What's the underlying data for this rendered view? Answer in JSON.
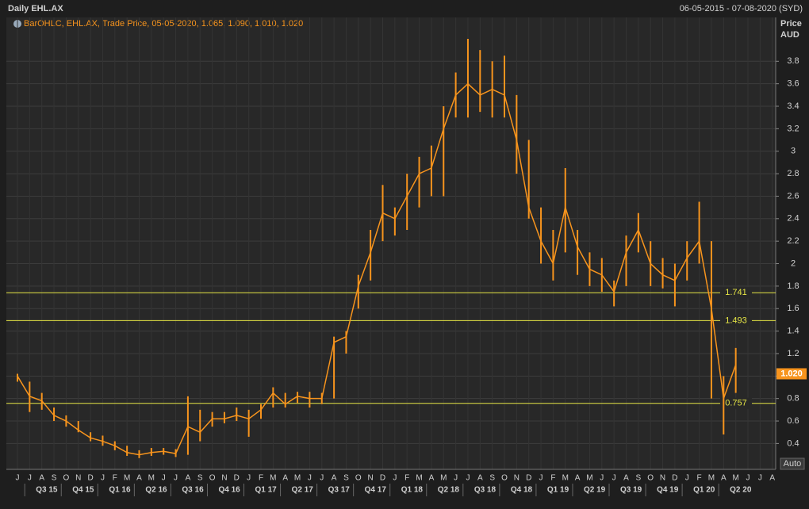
{
  "chart_data": {
    "type": "ohlc",
    "title": "Daily EHL.AX",
    "date_range": "06-05-2015 - 07-08-2020 (SYD)",
    "legend": "BarOHLC, EHL.AX, Trade Price, 05-05-2020, 1.065, 1.090, 1.010, 1.020",
    "y_axis_title": [
      "Price",
      "AUD"
    ],
    "color": "#f7941d",
    "categories": [
      "J",
      "J",
      "A",
      "S",
      "O",
      "N",
      "D",
      "J",
      "F",
      "M",
      "A",
      "M",
      "J",
      "J",
      "A",
      "S",
      "O",
      "N",
      "D",
      "J",
      "F",
      "M",
      "A",
      "M",
      "J",
      "J",
      "A",
      "S",
      "O",
      "N",
      "D",
      "J",
      "F",
      "M",
      "A",
      "M",
      "J",
      "J",
      "A",
      "S",
      "O",
      "N",
      "D",
      "J",
      "F",
      "M",
      "A",
      "M",
      "J",
      "J",
      "A",
      "S",
      "O",
      "N",
      "D",
      "J",
      "F",
      "M",
      "A",
      "M",
      "J",
      "J",
      "A"
    ],
    "quarters": [
      "Q3 15",
      "Q4 15",
      "Q1 16",
      "Q2 16",
      "Q3 16",
      "Q4 16",
      "Q1 17",
      "Q2 17",
      "Q3 17",
      "Q4 17",
      "Q1 18",
      "Q2 18",
      "Q3 18",
      "Q4 18",
      "Q1 19",
      "Q2 19",
      "Q3 19",
      "Q4 19",
      "Q1 20",
      "Q2 20"
    ],
    "high": [
      1.02,
      0.95,
      0.85,
      0.72,
      0.65,
      0.6,
      0.5,
      0.47,
      0.42,
      0.38,
      0.34,
      0.36,
      0.36,
      0.35,
      0.82,
      0.7,
      0.68,
      0.68,
      0.72,
      0.7,
      0.75,
      0.9,
      0.85,
      0.86,
      0.86,
      0.85,
      1.35,
      1.4,
      1.9,
      2.3,
      2.7,
      2.5,
      2.8,
      2.95,
      3.05,
      3.4,
      3.7,
      4.0,
      3.9,
      3.8,
      3.85,
      3.5,
      3.1,
      2.5,
      2.3,
      2.85,
      2.3,
      2.1,
      2.05,
      1.85,
      2.25,
      2.45,
      2.2,
      2.05,
      2.0,
      2.2,
      2.55,
      2.2,
      1.0,
      1.25,
      null,
      null,
      null
    ],
    "low": [
      0.95,
      0.68,
      0.7,
      0.6,
      0.55,
      0.5,
      0.42,
      0.38,
      0.34,
      0.29,
      0.27,
      0.29,
      0.3,
      0.28,
      0.3,
      0.42,
      0.55,
      0.58,
      0.6,
      0.46,
      0.62,
      0.72,
      0.72,
      0.76,
      0.72,
      0.75,
      0.8,
      1.2,
      1.6,
      1.85,
      2.2,
      2.25,
      2.3,
      2.5,
      2.6,
      2.6,
      3.3,
      3.3,
      3.35,
      3.3,
      3.3,
      2.8,
      2.4,
      2.0,
      1.85,
      2.1,
      1.9,
      1.8,
      1.75,
      1.62,
      1.8,
      2.1,
      1.8,
      1.78,
      1.62,
      1.85,
      2.0,
      0.8,
      0.48,
      0.85,
      null,
      null,
      null
    ],
    "close": [
      1.0,
      0.82,
      0.78,
      0.65,
      0.6,
      0.52,
      0.45,
      0.42,
      0.38,
      0.32,
      0.3,
      0.32,
      0.33,
      0.31,
      0.55,
      0.5,
      0.62,
      0.62,
      0.65,
      0.62,
      0.7,
      0.85,
      0.75,
      0.82,
      0.8,
      0.8,
      1.3,
      1.35,
      1.8,
      2.1,
      2.45,
      2.4,
      2.6,
      2.8,
      2.85,
      3.2,
      3.5,
      3.6,
      3.5,
      3.55,
      3.5,
      3.1,
      2.5,
      2.2,
      2.0,
      2.5,
      2.15,
      1.95,
      1.9,
      1.75,
      2.1,
      2.3,
      2.0,
      1.9,
      1.85,
      2.05,
      2.2,
      1.6,
      0.8,
      1.1,
      null,
      null,
      null
    ],
    "levels": [
      1.741,
      1.493,
      0.757
    ],
    "level_color": "#e6e645",
    "last_price": {
      "value": 1.02,
      "label": "1.020"
    },
    "ylim": [
      0.17,
      4.19
    ],
    "yticks": [
      0.4,
      0.6,
      0.8,
      1,
      1.2,
      1.4,
      1.6,
      1.8,
      2,
      2.2,
      2.4,
      2.6,
      2.8,
      3,
      3.2,
      3.4,
      3.6,
      3.8
    ],
    "grid": true,
    "button": "Auto"
  }
}
